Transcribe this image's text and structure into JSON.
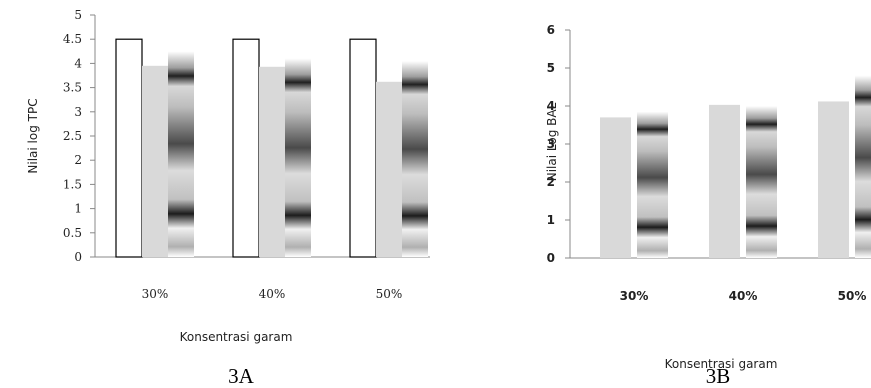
{
  "chart_data": [
    {
      "type": "bar",
      "panel_label": "3A",
      "categories": [
        "30%",
        "40%",
        "50%"
      ],
      "xlabel": "Konsentrasi garam",
      "ylabel": "Nilai log TPC",
      "ylim": [
        0,
        5
      ],
      "yticks": [
        "0",
        "0.5",
        "1",
        "1.5",
        "2",
        "2.5",
        "3",
        "3.5",
        "4",
        "4.5",
        "5"
      ],
      "series": [
        {
          "values": [
            4.5,
            4.5,
            4.5
          ],
          "fill": "#ffffff"
        },
        {
          "values": [
            3.95,
            3.93,
            3.62
          ],
          "fill": "#d9d9d9"
        },
        {
          "values": [
            4.25,
            4.1,
            4.05
          ],
          "fill": "gradient"
        }
      ]
    },
    {
      "type": "bar",
      "panel_label": "3B",
      "categories": [
        "30%",
        "40%",
        "50%"
      ],
      "xlabel": "Konsentrasi garam",
      "ylabel": "Nilai Log BAL",
      "ylim": [
        0,
        6
      ],
      "yticks": [
        "0",
        "1",
        "2",
        "3",
        "4",
        "5",
        "6"
      ],
      "series": [
        {
          "values": [
            3.7,
            4.03,
            4.12
          ],
          "fill": "#d9d9d9"
        },
        {
          "values": [
            3.85,
            4.0,
            4.8
          ],
          "fill": "gradient"
        }
      ]
    }
  ]
}
